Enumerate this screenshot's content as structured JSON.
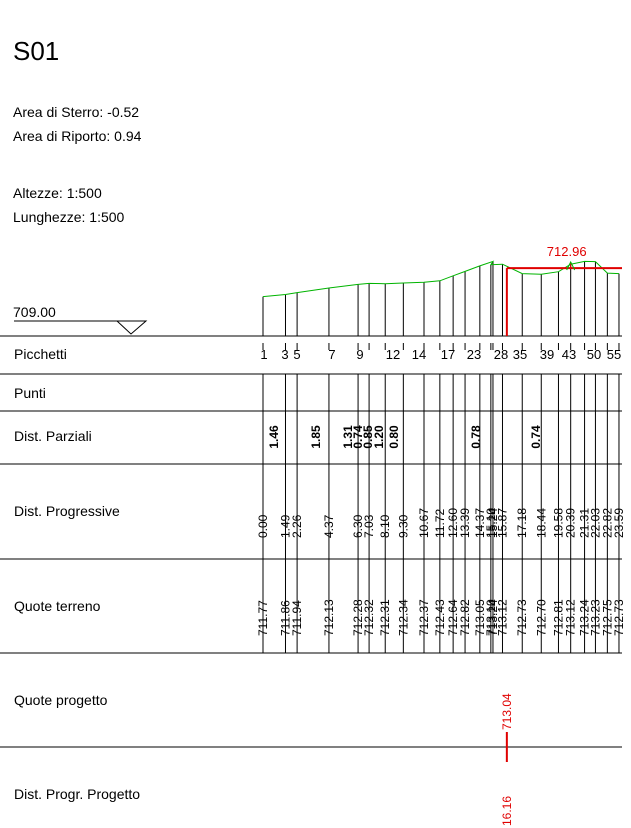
{
  "header": {
    "title": "S01",
    "area_sterro": "Area di Sterro: -0.52",
    "area_riporto": "Area di Riporto: 0.94",
    "altezze": "Altezze:  1:500",
    "lunghezze": "Lunghezze: 1:500"
  },
  "datum": {
    "label": "709.00"
  },
  "row_labels": {
    "picchetti": "Picchetti",
    "punti": "Punti",
    "dist_parziali": "Dist. Parziali",
    "dist_progressive": "Dist. Progressive",
    "quote_terreno": "Quote terreno",
    "quote_progetto": "Quote progetto",
    "dist_progr_progetto": "Dist. Progr. Progetto"
  },
  "picchetti_labels": [
    "1",
    "3",
    "5",
    "7",
    "9",
    "12",
    "14",
    "17",
    "23",
    "28",
    "35",
    "39",
    "43",
    "50",
    "55"
  ],
  "dist_parziali": [
    "1.46",
    "1.85",
    "1.31",
    "0.74",
    "0.85",
    "1.20",
    "0.80",
    "0.78",
    "0.74"
  ],
  "dist_progressive": [
    "0.00",
    "1.49",
    "2.26",
    "4.37",
    "6.30",
    "7.03",
    "8.10",
    "9.30",
    "10.67",
    "11.72",
    "12.60",
    "13.39",
    "14.37",
    "15.24",
    "15.10",
    "15.87",
    "17.18",
    "18.44",
    "19.58",
    "20.39",
    "21.31",
    "22.03",
    "22.82",
    "23.59"
  ],
  "quote_terreno": [
    "711.77",
    "711.86",
    "711.94",
    "712.13",
    "712.28",
    "712.32",
    "712.31",
    "712.34",
    "712.37",
    "712.43",
    "712.64",
    "712.82",
    "713.05",
    "713.24",
    "713.10",
    "713.12",
    "712.73",
    "712.70",
    "712.81",
    "713.12",
    "713.24",
    "713.23",
    "712.75",
    "712.73"
  ],
  "progetto": {
    "top_label": "712.96",
    "quota": "713.04",
    "dist": "16.16"
  },
  "colors": {
    "ground": "#00b400",
    "design": "#e00000",
    "lines": "#000000"
  }
}
